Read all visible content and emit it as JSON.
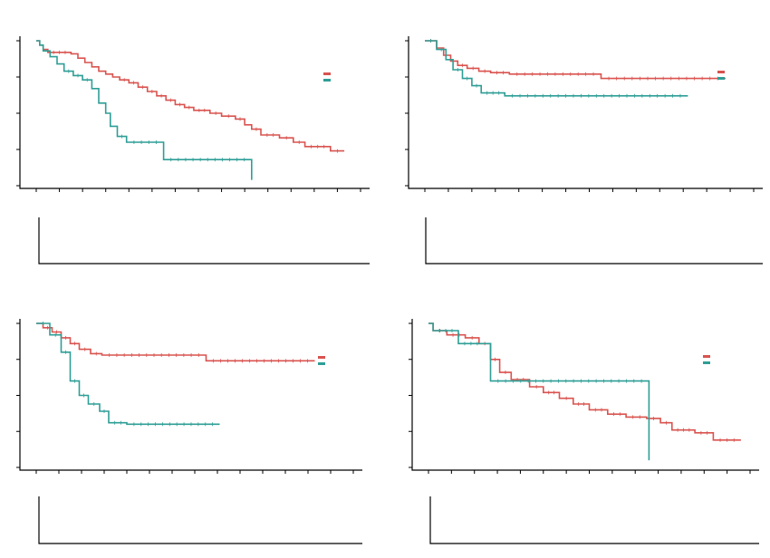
{
  "colors": {
    "group1": "#d9534f",
    "group2": "#2e9e96",
    "axis": "#000000"
  },
  "chart_data": [
    {
      "type": "line",
      "subtype": "kaplan-meier",
      "title": "",
      "xlabel": "",
      "ylabel": "",
      "xlim": [
        0,
        14
      ],
      "ylim": [
        0,
        1
      ],
      "legend": "right",
      "grid": false,
      "series": [
        {
          "color": "#d9534f",
          "x": [
            0,
            0.15,
            0.3,
            0.5,
            1.5,
            1.8,
            2.1,
            2.4,
            2.7,
            3.0,
            3.3,
            3.6,
            4.0,
            4.4,
            4.8,
            5.2,
            5.6,
            6.0,
            6.4,
            6.8,
            7.5,
            8.0,
            8.6,
            9.0,
            9.3,
            9.7,
            10.5,
            11.1,
            11.6,
            12.7,
            13.3
          ],
          "y": [
            1,
            0.97,
            0.94,
            0.92,
            0.91,
            0.88,
            0.85,
            0.82,
            0.79,
            0.77,
            0.75,
            0.73,
            0.71,
            0.68,
            0.65,
            0.62,
            0.59,
            0.56,
            0.54,
            0.52,
            0.5,
            0.48,
            0.46,
            0.42,
            0.39,
            0.35,
            0.33,
            0.3,
            0.27,
            0.24,
            0.24
          ]
        },
        {
          "color": "#2e9e96",
          "x": [
            0,
            0.15,
            0.3,
            0.6,
            0.9,
            1.2,
            1.6,
            2.0,
            2.4,
            2.7,
            3.0,
            3.2,
            3.5,
            3.9,
            5.5,
            9.3,
            9.3
          ],
          "y": [
            1,
            0.97,
            0.93,
            0.89,
            0.84,
            0.79,
            0.76,
            0.73,
            0.67,
            0.57,
            0.5,
            0.41,
            0.34,
            0.3,
            0.18,
            0.18,
            0.04
          ]
        }
      ]
    },
    {
      "type": "line",
      "subtype": "kaplan-meier",
      "title": "",
      "xlabel": "",
      "ylabel": "",
      "xlim": [
        0,
        14
      ],
      "ylim": [
        0,
        1
      ],
      "legend": "right",
      "grid": false,
      "series": [
        {
          "color": "#d9534f",
          "x": [
            0,
            0.5,
            0.8,
            1.1,
            1.4,
            1.8,
            2.3,
            2.8,
            3.6,
            7.5,
            12.8
          ],
          "y": [
            1,
            0.95,
            0.9,
            0.86,
            0.83,
            0.81,
            0.79,
            0.78,
            0.77,
            0.74,
            0.74
          ]
        },
        {
          "color": "#2e9e96",
          "x": [
            0,
            0.5,
            0.9,
            1.2,
            1.6,
            2.0,
            2.4,
            3.4,
            11.2
          ],
          "y": [
            1,
            0.94,
            0.87,
            0.8,
            0.74,
            0.69,
            0.64,
            0.62,
            0.62
          ]
        }
      ]
    },
    {
      "type": "line",
      "subtype": "kaplan-meier",
      "title": "",
      "xlabel": "",
      "ylabel": "",
      "xlim": [
        0,
        14
      ],
      "ylim": [
        0,
        1
      ],
      "legend": "right",
      "grid": false,
      "series": [
        {
          "color": "#d9534f",
          "x": [
            0,
            0.3,
            0.7,
            1.1,
            1.5,
            1.9,
            2.4,
            2.9,
            7.5,
            12.3
          ],
          "y": [
            1,
            0.97,
            0.94,
            0.9,
            0.86,
            0.82,
            0.79,
            0.78,
            0.74,
            0.74
          ]
        },
        {
          "color": "#2e9e96",
          "x": [
            0,
            0.6,
            1.1,
            1.5,
            1.9,
            2.3,
            2.8,
            3.2,
            4.0,
            8.1
          ],
          "y": [
            1,
            0.92,
            0.8,
            0.6,
            0.5,
            0.44,
            0.39,
            0.31,
            0.3,
            0.3
          ]
        }
      ]
    },
    {
      "type": "line",
      "subtype": "kaplan-meier",
      "title": "",
      "xlabel": "",
      "ylabel": "",
      "xlim": [
        0,
        14
      ],
      "ylim": [
        0,
        1
      ],
      "legend": "right",
      "grid": false,
      "series": [
        {
          "color": "#d9534f",
          "x": [
            0,
            0.2,
            0.8,
            1.6,
            2.2,
            2.7,
            3.1,
            3.6,
            4.4,
            5.0,
            5.7,
            6.3,
            7.0,
            7.8,
            8.6,
            9.5,
            10.1,
            10.6,
            11.6,
            12.4,
            13.6
          ],
          "y": [
            1,
            0.95,
            0.92,
            0.9,
            0.86,
            0.75,
            0.66,
            0.61,
            0.56,
            0.52,
            0.48,
            0.44,
            0.4,
            0.37,
            0.35,
            0.34,
            0.31,
            0.26,
            0.24,
            0.19,
            0.19
          ]
        },
        {
          "color": "#2e9e96",
          "x": [
            0,
            0.2,
            1.3,
            2.4,
            2.7,
            9.6,
            9.6
          ],
          "y": [
            1,
            0.95,
            0.86,
            0.86,
            0.6,
            0.6,
            0.05
          ]
        }
      ]
    }
  ]
}
